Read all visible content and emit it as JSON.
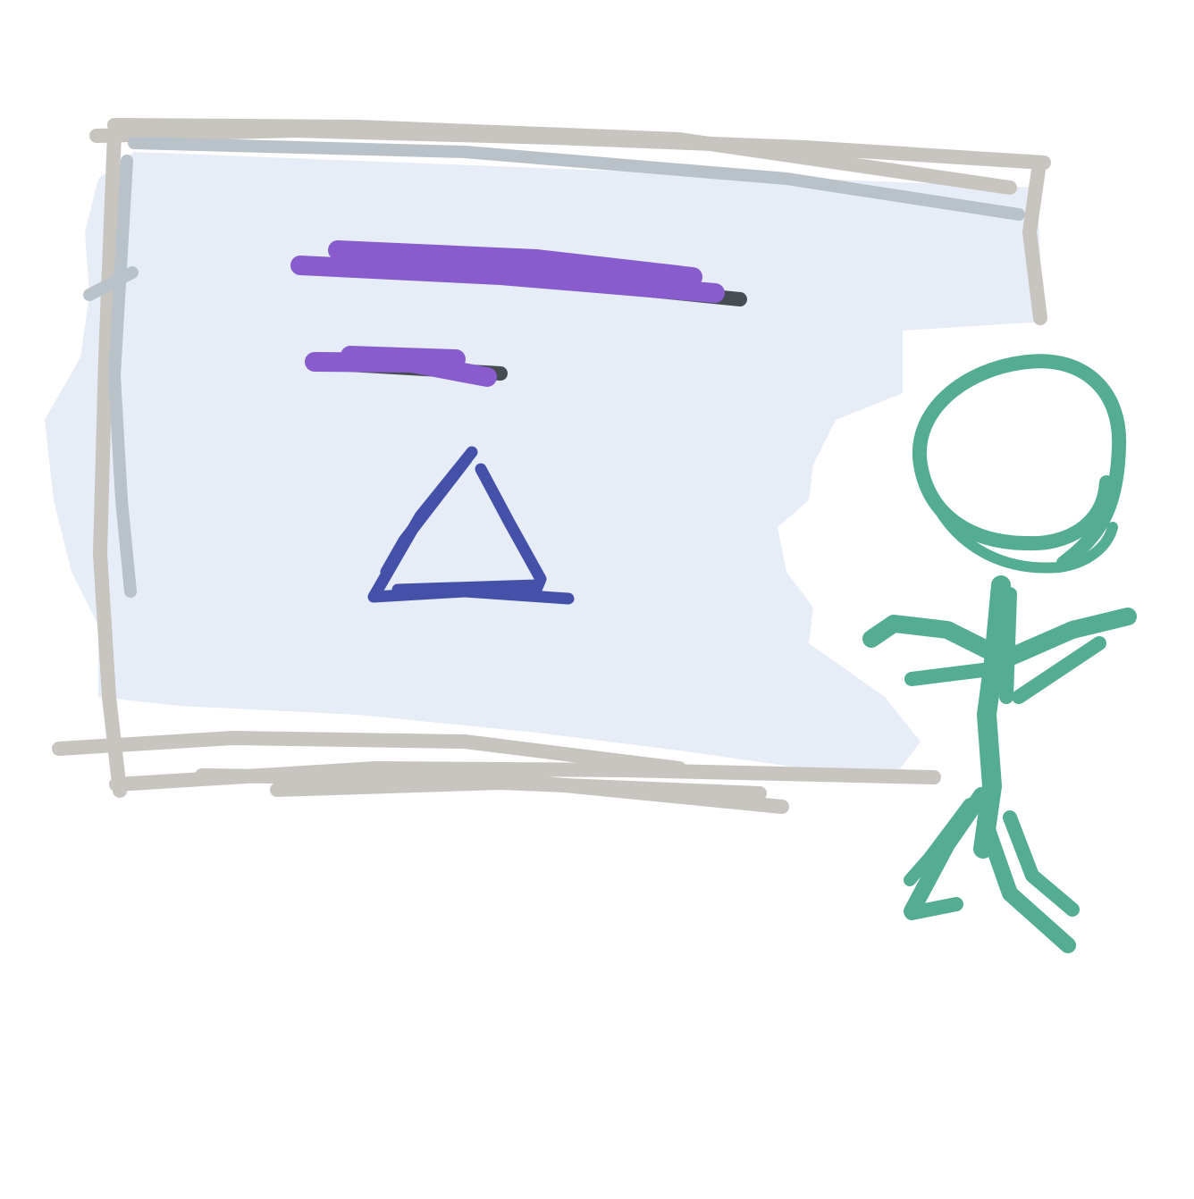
{
  "colors": {
    "background": "#ffffff",
    "board_fill": "#e6edf6",
    "board_frame": "#c8c4bf",
    "board_frame_shadow": "#b9c2c8",
    "text_lines": "#885ccc",
    "text_line_shadow": "#454d52",
    "triangle": "#4551a8",
    "figure": "#54ad93"
  },
  "elements": {
    "board": "presentation-board",
    "text_lines": [
      "heading-line",
      "subheading-line"
    ],
    "shape": "triangle-icon",
    "figure": "stick-figure"
  }
}
